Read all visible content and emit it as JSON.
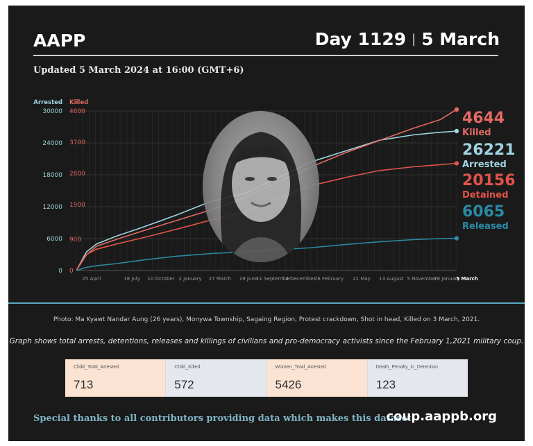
{
  "header": {
    "brand": "AAPP",
    "day": "Day 1129",
    "separator": "|",
    "date": "5 March",
    "updated": "Updated 5 March 2024 at 16:00 (GMT+6)"
  },
  "colors": {
    "background": "#1a1a1a",
    "arrested": "#9fd3e0",
    "killed": "#e36a63",
    "detained": "#e0534b",
    "released": "#2a8aa3",
    "divider": "#5aa9c0"
  },
  "callouts": [
    {
      "value": "4644",
      "label": "Killed",
      "color": "#e36a63"
    },
    {
      "value": "26221",
      "label": "Arrested",
      "color": "#9fd3e0"
    },
    {
      "value": "20156",
      "label": "Detained",
      "color": "#e0534b"
    },
    {
      "value": "6065",
      "label": "Released",
      "color": "#2a8aa3"
    }
  ],
  "chart_data": {
    "type": "line",
    "title": "",
    "left_axis": {
      "label": "Arrested",
      "ticks": [
        0,
        6000,
        12000,
        18000,
        24000,
        30000
      ],
      "range": [
        0,
        30000
      ],
      "color": "#9fd3e0"
    },
    "right_axis": {
      "label": "Killed",
      "ticks": [
        0,
        900,
        1900,
        2800,
        3700,
        4600
      ],
      "range": [
        0,
        4600
      ],
      "color": "#e36a63"
    },
    "x_tick_labels": [
      "25 April",
      "18 July",
      "10 October",
      "2 January",
      "27 March",
      "19 June",
      "11 September",
      "4 December",
      "26 February",
      "21 May",
      "13 August",
      "5 November",
      "28 January",
      "5 March"
    ],
    "x_range": [
      0,
      1129
    ],
    "grid": true,
    "series": [
      {
        "name": "Arrested",
        "axis": "left",
        "color": "#9fd3e0",
        "x": [
          0,
          30,
          60,
          120,
          200,
          300,
          400,
          500,
          600,
          700,
          800,
          900,
          1000,
          1080,
          1129
        ],
        "y": [
          0,
          3500,
          5000,
          6500,
          8200,
          10500,
          13000,
          14500,
          17500,
          20500,
          22500,
          24500,
          25500,
          26000,
          26221
        ]
      },
      {
        "name": "Killed",
        "axis": "right",
        "color": "#e36a63",
        "x": [
          0,
          30,
          60,
          120,
          200,
          300,
          400,
          500,
          600,
          700,
          800,
          900,
          1000,
          1080,
          1129
        ],
        "y": [
          0,
          450,
          700,
          900,
          1150,
          1450,
          1750,
          2100,
          2550,
          3000,
          3400,
          3750,
          4100,
          4350,
          4644
        ]
      },
      {
        "name": "Detained",
        "axis": "left",
        "color": "#e0534b",
        "x": [
          0,
          30,
          60,
          120,
          200,
          300,
          400,
          500,
          600,
          700,
          800,
          900,
          1000,
          1080,
          1129
        ],
        "y": [
          0,
          3000,
          4000,
          5000,
          6200,
          7800,
          9500,
          11000,
          13500,
          16000,
          17500,
          18800,
          19500,
          19900,
          20156
        ]
      },
      {
        "name": "Released",
        "axis": "left",
        "color": "#2a8aa3",
        "x": [
          0,
          30,
          60,
          120,
          200,
          300,
          400,
          500,
          600,
          700,
          800,
          900,
          1000,
          1080,
          1129
        ],
        "y": [
          0,
          600,
          900,
          1300,
          2000,
          2700,
          3200,
          3500,
          3900,
          4300,
          4900,
          5400,
          5800,
          6000,
          6065
        ]
      }
    ]
  },
  "photo_caption": "Photo: Ma Kyawt Nandar Aung (26 years), Monywa Township, Sagaing Region, Protest crackdown, Shot in head, Killed on 3 March, 2021.",
  "graph_note": "Graph shows total arrests, detentions, releases and killings of civilians and pro-democracy activists since the February 1,2021 military coup.",
  "stats": [
    {
      "label": "Child_Total_Arrested",
      "value": "713",
      "bg": "#fbe3d3"
    },
    {
      "label": "Child_Killed",
      "value": "572",
      "bg": "#e4e8ee"
    },
    {
      "label": "Women_Total_Arrested",
      "value": "5426",
      "bg": "#fbe3d3"
    },
    {
      "label": "Death_Penalty_in_Detention",
      "value": "123",
      "bg": "#e4e8ee"
    }
  ],
  "footer": {
    "thanks": "Special thanks to all contributors providing data which makes this dataset.",
    "site": "coup.aappb.org"
  }
}
